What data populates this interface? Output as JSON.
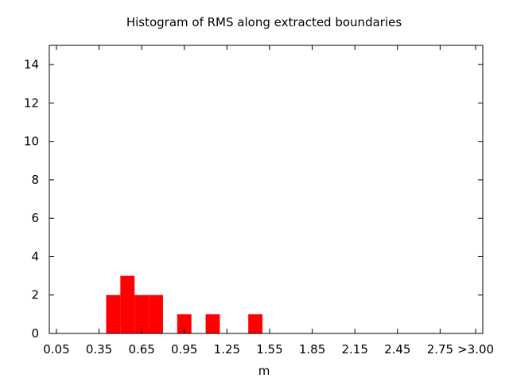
{
  "chart_data": {
    "type": "bar",
    "title": "Histogram of RMS along extracted boundaries",
    "xlabel": "m",
    "ylabel": "",
    "x_tick_labels": [
      "0.05",
      "0.35",
      "0.65",
      "0.95",
      "1.25",
      "1.55",
      "1.85",
      "2.15",
      "2.45",
      "2.75",
      ">3.00"
    ],
    "x_tick_values": [
      0.05,
      0.35,
      0.65,
      0.95,
      1.25,
      1.55,
      1.85,
      2.15,
      2.45,
      2.75,
      3.0
    ],
    "xlim": [
      0.0,
      3.05
    ],
    "ylim": [
      0,
      15
    ],
    "y_ticks": [
      0,
      2,
      4,
      6,
      8,
      10,
      12,
      14
    ],
    "bin_width": 0.1,
    "bins": [
      {
        "start": 0.4,
        "end": 0.5,
        "value": 2
      },
      {
        "start": 0.5,
        "end": 0.6,
        "value": 3
      },
      {
        "start": 0.6,
        "end": 0.7,
        "value": 2
      },
      {
        "start": 0.7,
        "end": 0.8,
        "value": 2
      },
      {
        "start": 0.9,
        "end": 1.0,
        "value": 1
      },
      {
        "start": 1.1,
        "end": 1.2,
        "value": 1
      },
      {
        "start": 1.4,
        "end": 1.5,
        "value": 1
      }
    ],
    "bar_color": "#ff0000",
    "grid": false,
    "legend": "none"
  }
}
